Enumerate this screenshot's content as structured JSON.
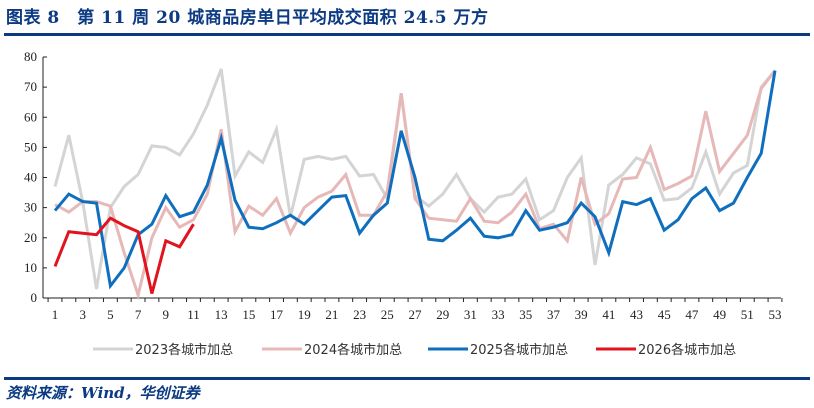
{
  "header": {
    "title": "图表 8　第 11 周 20 城商品房单日平均成交面积 24.5 万方"
  },
  "footer": {
    "source": "资料来源：Wind，华创证券"
  },
  "colors": {
    "brand": "#0b3a82",
    "s2023": "#d4d4d4",
    "s2024": "#e6b8b8",
    "s2025": "#0f6fbe",
    "s2026": "#e0141e"
  },
  "chart_data": {
    "type": "line",
    "title": "第 11 周 20 城商品房单日平均成交面积 24.5 万方",
    "xlabel": "",
    "ylabel": "",
    "ylim": [
      0,
      80
    ],
    "yticks": [
      0,
      10,
      20,
      30,
      40,
      50,
      60,
      70,
      80
    ],
    "xticks": [
      1,
      3,
      5,
      7,
      9,
      11,
      13,
      15,
      17,
      19,
      21,
      23,
      25,
      27,
      29,
      31,
      33,
      35,
      37,
      39,
      41,
      43,
      45,
      47,
      49,
      51,
      53
    ],
    "x": [
      1,
      2,
      3,
      4,
      5,
      6,
      7,
      8,
      9,
      10,
      11,
      12,
      13,
      14,
      15,
      16,
      17,
      18,
      19,
      20,
      21,
      22,
      23,
      24,
      25,
      26,
      27,
      28,
      29,
      30,
      31,
      32,
      33,
      34,
      35,
      36,
      37,
      38,
      39,
      40,
      41,
      42,
      43,
      44,
      45,
      46,
      47,
      48,
      49,
      50,
      51,
      52,
      53
    ],
    "grid": false,
    "legend_position": "bottom",
    "series": [
      {
        "name": "2023各城市加总",
        "color": "#d4d4d4",
        "values": [
          37,
          54,
          32,
          3,
          30,
          37,
          41,
          50.5,
          50,
          47.5,
          54.5,
          64,
          76,
          40.5,
          48.5,
          45,
          56,
          27,
          46,
          47,
          46,
          47,
          40.5,
          41,
          33,
          68,
          34,
          30.5,
          34.5,
          41,
          33,
          28.5,
          33.5,
          34.5,
          39.5,
          26,
          29,
          40,
          46.5,
          11,
          37.5,
          41,
          46.5,
          44.5,
          32.5,
          33,
          36.5,
          48.5,
          34.5,
          41.5,
          44,
          70,
          75.5
        ]
      },
      {
        "name": "2024各城市加总",
        "color": "#e6b8b8",
        "values": [
          31,
          28.5,
          32,
          32,
          30.5,
          15,
          1,
          20,
          30,
          23.5,
          26,
          34.5,
          56,
          22,
          30.5,
          27.5,
          33,
          21.5,
          30,
          33.5,
          35.5,
          41,
          27.5,
          27.5,
          35.5,
          68,
          33,
          26.5,
          26,
          25.5,
          33,
          25.5,
          25,
          28.5,
          34.5,
          23,
          24.5,
          19,
          40,
          24.5,
          28,
          39.5,
          40,
          50,
          36,
          38,
          40.5,
          62,
          42,
          48,
          54,
          69.5,
          75.5
        ]
      },
      {
        "name": "2025各城市加总",
        "color": "#0f6fbe",
        "values": [
          29,
          34.5,
          32,
          31.5,
          4,
          10,
          21,
          24.5,
          34,
          27,
          28.5,
          37.5,
          53,
          32.5,
          23.5,
          23,
          25,
          27.5,
          24.5,
          29,
          33.5,
          34,
          21.5,
          27.5,
          31.5,
          55.5,
          40,
          19.5,
          19,
          22.5,
          26.5,
          20.5,
          20,
          21,
          29,
          22.5,
          23.5,
          25,
          31.5,
          27,
          15,
          32,
          31,
          33,
          22.5,
          26,
          33,
          36.5,
          29,
          31.5,
          40,
          48,
          75.5
        ]
      },
      {
        "name": "2026各城市加总",
        "color": "#e0141e",
        "values": [
          10.5,
          22,
          21.5,
          21,
          26.5,
          24,
          22,
          1.5,
          19,
          17,
          24.5
        ]
      }
    ]
  },
  "legend": {
    "items": [
      "2023各城市加总",
      "2024各城市加总",
      "2025各城市加总",
      "2026各城市加总"
    ]
  }
}
